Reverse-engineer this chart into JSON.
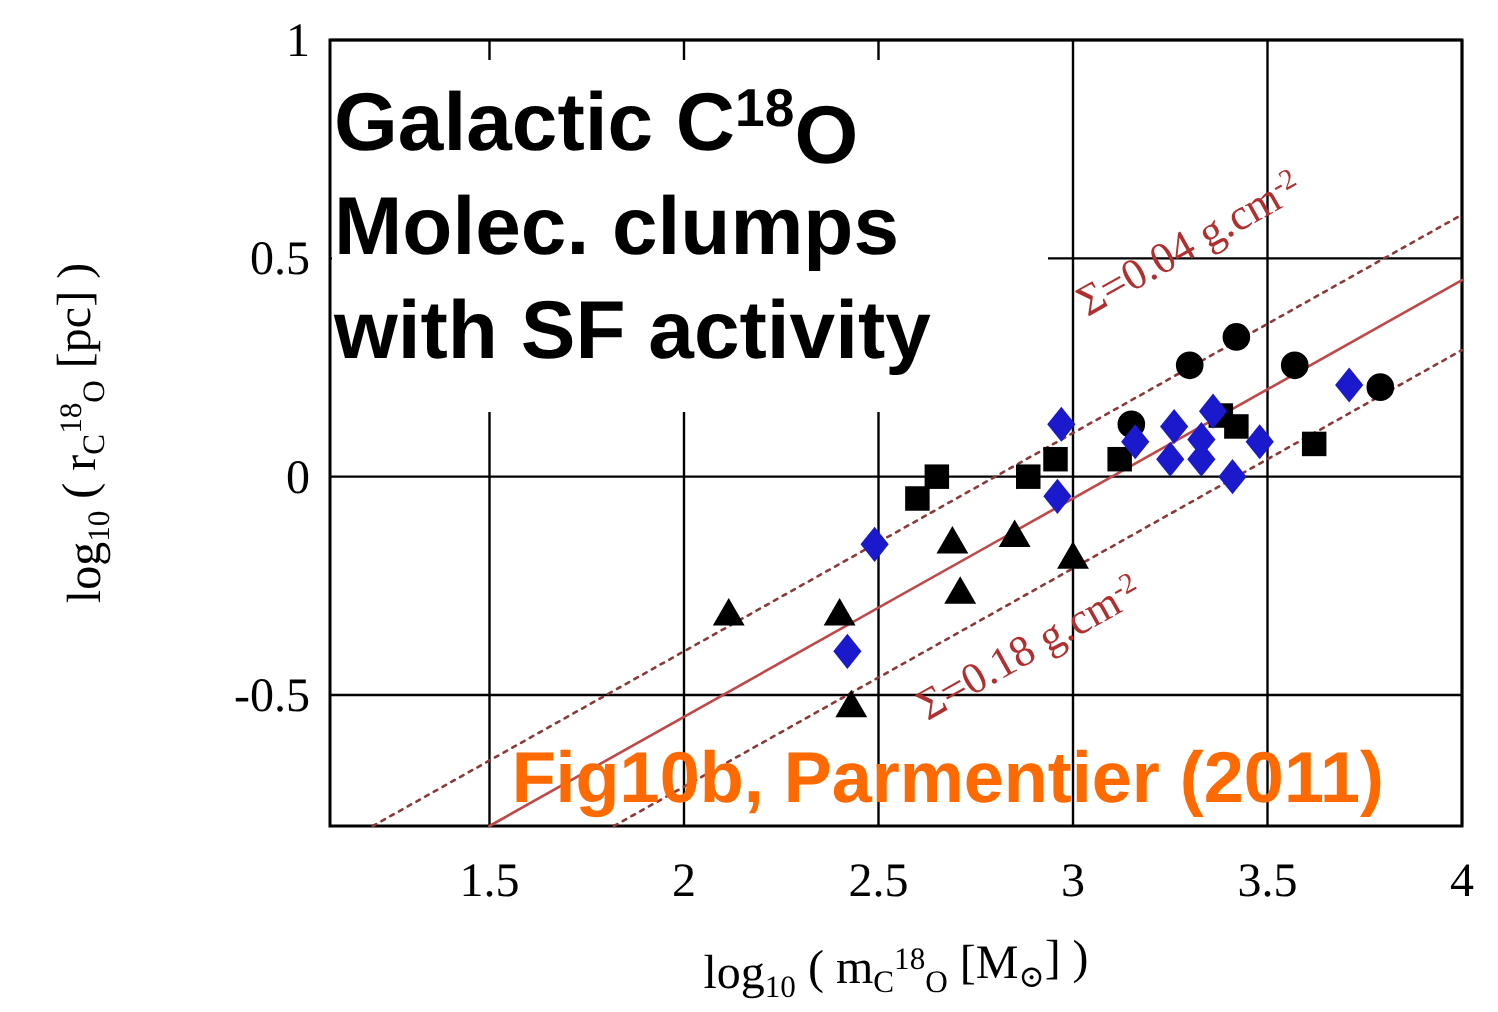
{
  "chart_data": {
    "type": "scatter",
    "title": "Galactic C$^{18}$O Molec. clumps with SF activity",
    "xlabel": "log$_{10}$ ( m$_{C}$$^{18}$$_{O}$ [M$_{⊙}$] )",
    "ylabel": "log$_{10}$ ( r$_{C}$$^{18}$$_{O}$ [pc] )",
    "xlim": [
      1.09,
      4
    ],
    "ylim": [
      -0.8,
      1
    ],
    "xticks": [
      1.5,
      2,
      2.5,
      3,
      3.5,
      4
    ],
    "yticks": [
      -0.5,
      0,
      0.5,
      1
    ],
    "grid": true,
    "annotations": [
      "Σ=0.04 g.cm$^{-2}$",
      "Σ=0.18 g.cm$^{-2}$",
      "Fig10b, Parmentier (2011)"
    ],
    "series": [
      {
        "type": "line",
        "color": "#8b3a3a",
        "line_style": "dotted",
        "x": [
          1.2,
          4
        ],
        "values": [
          -0.8,
          0.6
        ]
      },
      {
        "type": "line",
        "color": "#c04848",
        "line_style": "solid",
        "x": [
          1.5,
          4
        ],
        "values": [
          -0.8,
          0.45
        ]
      },
      {
        "type": "line",
        "color": "#8b3a3a",
        "line_style": "dotted",
        "x": [
          1.82,
          4
        ],
        "values": [
          -0.8,
          0.29
        ]
      },
      {
        "color": "#000000",
        "marker": "triangle",
        "x": [
          2.115,
          2.4,
          2.43,
          2.69,
          2.71,
          2.85,
          3.0
        ],
        "values": [
          -0.32,
          -0.32,
          -0.53,
          -0.155,
          -0.27,
          -0.14,
          -0.19
        ]
      },
      {
        "color": "#000000",
        "marker": "square",
        "x": [
          2.6,
          2.65,
          2.885,
          2.955,
          3.12,
          3.38,
          3.42,
          3.62
        ],
        "values": [
          -0.05,
          0.0,
          0.0,
          0.04,
          0.04,
          0.14,
          0.115,
          0.075
        ]
      },
      {
        "color": "#000000",
        "marker": "circle",
        "x": [
          3.15,
          3.3,
          3.42,
          3.57,
          3.79
        ],
        "values": [
          0.12,
          0.255,
          0.32,
          0.255,
          0.205
        ]
      },
      {
        "color": "#1a1acc",
        "marker": "diamond",
        "x": [
          2.49,
          2.42,
          2.97,
          2.96,
          3.16,
          3.26,
          3.25,
          3.33,
          3.33,
          3.36,
          3.41,
          3.48,
          3.71
        ],
        "values": [
          -0.155,
          -0.4,
          0.12,
          -0.045,
          0.08,
          0.115,
          0.04,
          0.085,
          0.04,
          0.15,
          0.0,
          0.08,
          0.21
        ]
      }
    ]
  }
}
